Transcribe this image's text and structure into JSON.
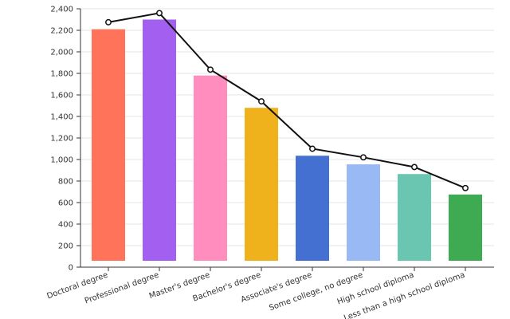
{
  "chart_data": {
    "type": "bar",
    "categories": [
      "Doctoral degree",
      "Professional degree",
      "Master's degree",
      "Bachelor's degree",
      "Associate's degree",
      "Some college, no degree",
      "High school diploma",
      "Less than a high school diploma"
    ],
    "series": [
      {
        "type": "bar",
        "values": [
          2210,
          2300,
          1780,
          1480,
          1035,
          955,
          865,
          675
        ],
        "colors": [
          "#ff735b",
          "#a35ff0",
          "#ff8ebf",
          "#efb11c",
          "#4470d2",
          "#98b9f3",
          "#6ac6b0",
          "#3eab52"
        ]
      },
      {
        "type": "line",
        "values": [
          2275,
          2360,
          1835,
          1540,
          1100,
          1020,
          930,
          735
        ],
        "color": "#111111"
      }
    ],
    "title": "",
    "xlabel": "",
    "ylabel": "",
    "ylim": [
      0,
      2400
    ],
    "yticks": [
      0,
      200,
      400,
      600,
      800,
      1000,
      1200,
      1400,
      1600,
      1800,
      2000,
      2200,
      2400
    ],
    "ytick_labels": [
      "0",
      "200",
      "400",
      "600",
      "800",
      "1,000",
      "1,200",
      "1,400",
      "1,600",
      "1,800",
      "2,000",
      "2,200",
      "2,400"
    ],
    "grid": true
  }
}
